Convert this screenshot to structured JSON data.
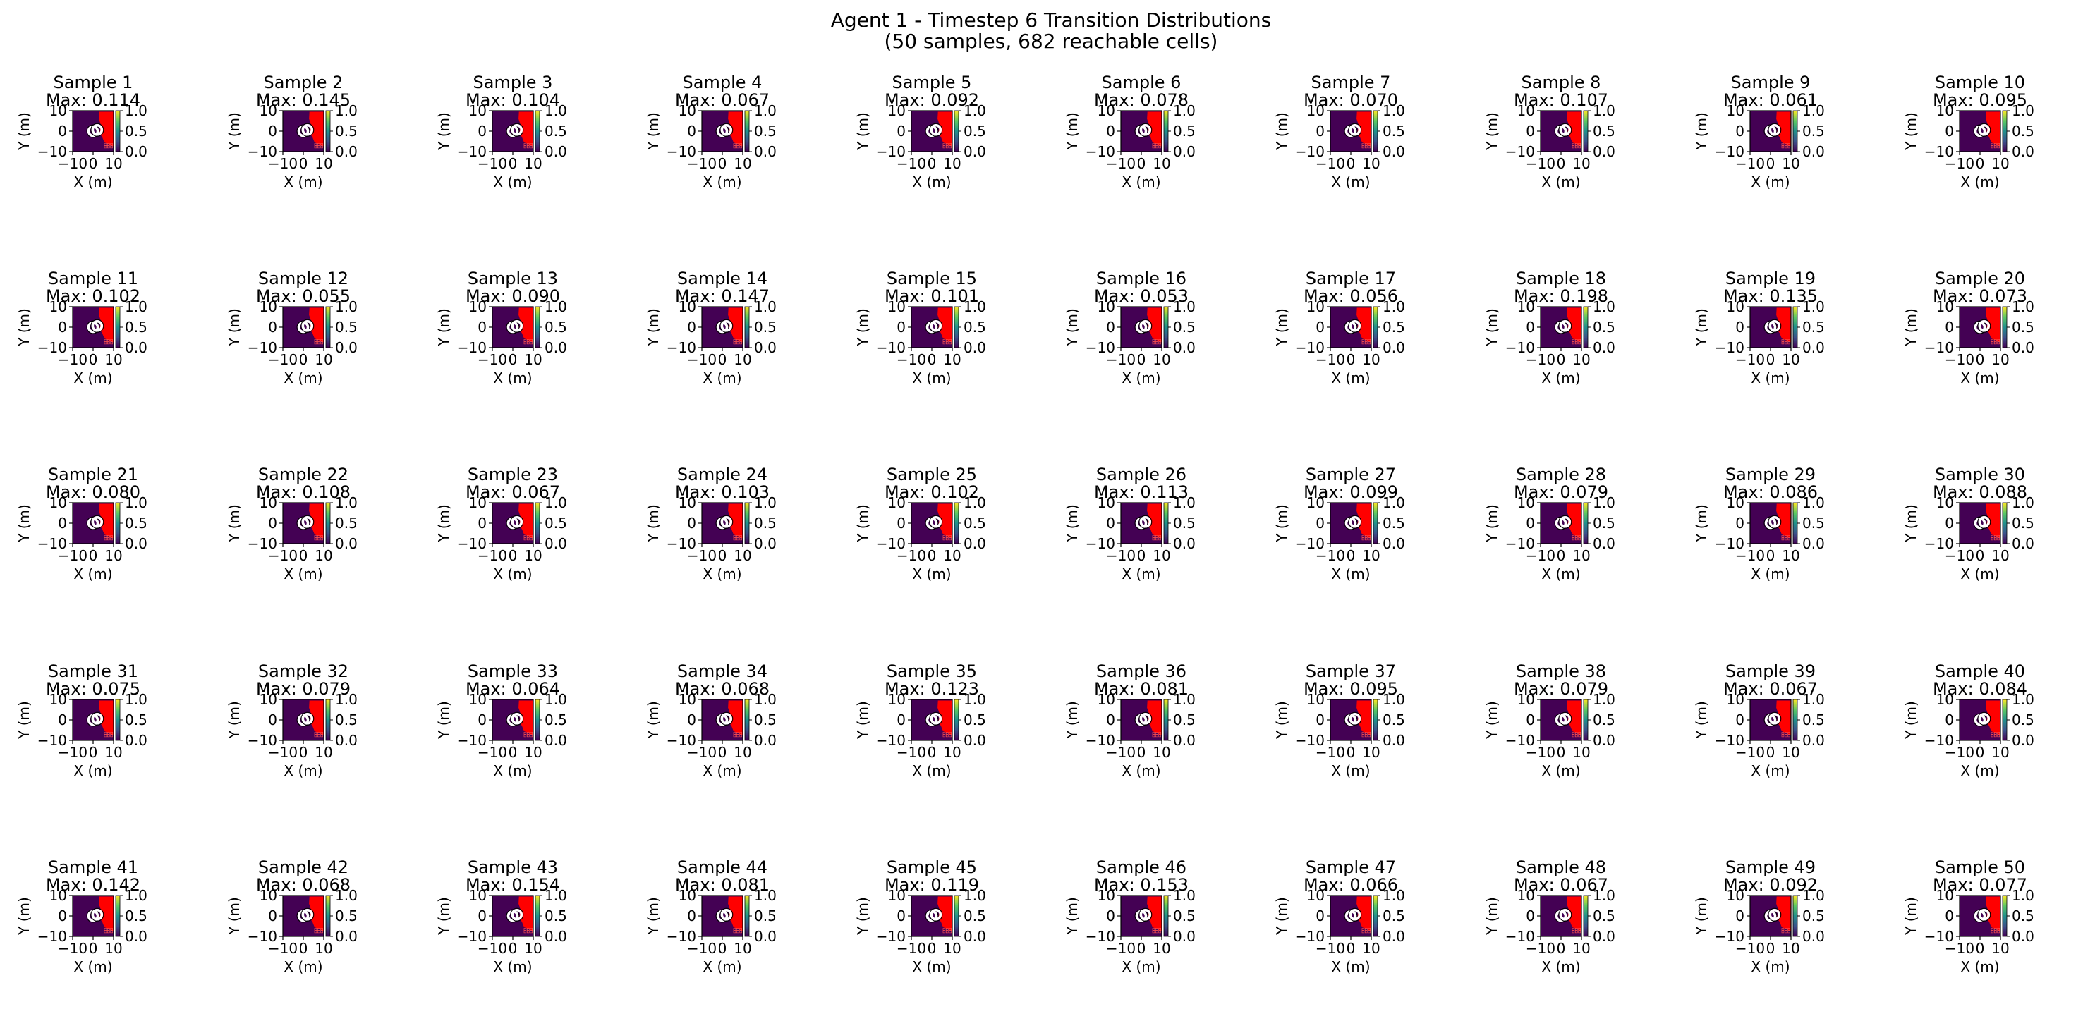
{
  "figure": {
    "title_line1": "Agent 1 - Timestep 6 Transition Distributions",
    "title_line2": "(50 samples, 682 reachable cells)"
  },
  "chart_data": {
    "type": "heatmap",
    "grid": {
      "rows": 5,
      "cols": 10
    },
    "xlabel": "X (m)",
    "ylabel": "Y (m)",
    "xlim": [
      -10,
      10
    ],
    "ylim": [
      -10,
      10
    ],
    "xticks": [
      "−10",
      "0",
      "10"
    ],
    "yticks": [
      "10",
      "0",
      "−10"
    ],
    "colorbar": {
      "ticks": [
        "1.0",
        "0.5",
        "0.0"
      ],
      "range": [
        0,
        1
      ],
      "cmap": "viridis"
    },
    "colors": {
      "background": "#440154",
      "reachable": "#ff0000",
      "marker_edge": "#ffffff"
    },
    "markers": [
      {
        "x": 0,
        "y": 0
      },
      {
        "x": 2,
        "y": 0.6
      }
    ],
    "sample_label_prefix": "Sample ",
    "max_label_prefix": "Max: ",
    "samples": [
      {
        "label": "Sample 1",
        "max": "0.114"
      },
      {
        "label": "Sample 2",
        "max": "0.145"
      },
      {
        "label": "Sample 3",
        "max": "0.104"
      },
      {
        "label": "Sample 4",
        "max": "0.067"
      },
      {
        "label": "Sample 5",
        "max": "0.092"
      },
      {
        "label": "Sample 6",
        "max": "0.078"
      },
      {
        "label": "Sample 7",
        "max": "0.070"
      },
      {
        "label": "Sample 8",
        "max": "0.107"
      },
      {
        "label": "Sample 9",
        "max": "0.061"
      },
      {
        "label": "Sample 10",
        "max": "0.095"
      },
      {
        "label": "Sample 11",
        "max": "0.102"
      },
      {
        "label": "Sample 12",
        "max": "0.055"
      },
      {
        "label": "Sample 13",
        "max": "0.090"
      },
      {
        "label": "Sample 14",
        "max": "0.147"
      },
      {
        "label": "Sample 15",
        "max": "0.101"
      },
      {
        "label": "Sample 16",
        "max": "0.053"
      },
      {
        "label": "Sample 17",
        "max": "0.056"
      },
      {
        "label": "Sample 18",
        "max": "0.198"
      },
      {
        "label": "Sample 19",
        "max": "0.135"
      },
      {
        "label": "Sample 20",
        "max": "0.073"
      },
      {
        "label": "Sample 21",
        "max": "0.080"
      },
      {
        "label": "Sample 22",
        "max": "0.108"
      },
      {
        "label": "Sample 23",
        "max": "0.067"
      },
      {
        "label": "Sample 24",
        "max": "0.103"
      },
      {
        "label": "Sample 25",
        "max": "0.102"
      },
      {
        "label": "Sample 26",
        "max": "0.113"
      },
      {
        "label": "Sample 27",
        "max": "0.099"
      },
      {
        "label": "Sample 28",
        "max": "0.079"
      },
      {
        "label": "Sample 29",
        "max": "0.086"
      },
      {
        "label": "Sample 30",
        "max": "0.088"
      },
      {
        "label": "Sample 31",
        "max": "0.075"
      },
      {
        "label": "Sample 32",
        "max": "0.079"
      },
      {
        "label": "Sample 33",
        "max": "0.064"
      },
      {
        "label": "Sample 34",
        "max": "0.068"
      },
      {
        "label": "Sample 35",
        "max": "0.123"
      },
      {
        "label": "Sample 36",
        "max": "0.081"
      },
      {
        "label": "Sample 37",
        "max": "0.095"
      },
      {
        "label": "Sample 38",
        "max": "0.079"
      },
      {
        "label": "Sample 39",
        "max": "0.067"
      },
      {
        "label": "Sample 40",
        "max": "0.084"
      },
      {
        "label": "Sample 41",
        "max": "0.142"
      },
      {
        "label": "Sample 42",
        "max": "0.068"
      },
      {
        "label": "Sample 43",
        "max": "0.154"
      },
      {
        "label": "Sample 44",
        "max": "0.081"
      },
      {
        "label": "Sample 45",
        "max": "0.119"
      },
      {
        "label": "Sample 46",
        "max": "0.153"
      },
      {
        "label": "Sample 47",
        "max": "0.066"
      },
      {
        "label": "Sample 48",
        "max": "0.067"
      },
      {
        "label": "Sample 49",
        "max": "0.092"
      },
      {
        "label": "Sample 50",
        "max": "0.077"
      }
    ]
  }
}
